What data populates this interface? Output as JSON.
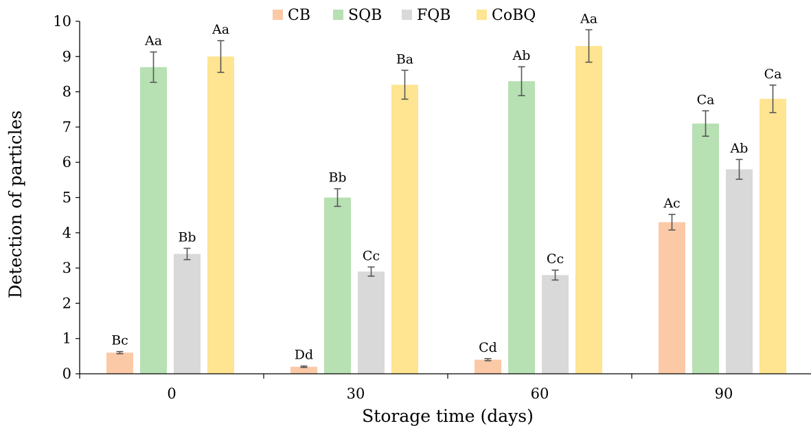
{
  "chart_data": {
    "type": "bar",
    "title": "",
    "xlabel": "Storage time (days)",
    "ylabel": "Detection of particles",
    "categories": [
      "0",
      "30",
      "60",
      "90"
    ],
    "ylim": [
      0,
      10
    ],
    "yticks": [
      "0",
      "1",
      "2",
      "3",
      "4",
      "5",
      "6",
      "7",
      "8",
      "9",
      "10"
    ],
    "grid": false,
    "legend": "top",
    "series": [
      {
        "name": "CB",
        "color": "#fcc9a6",
        "values": [
          0.6,
          0.2,
          0.4,
          4.3
        ],
        "errors": [
          0.03,
          0.02,
          0.03,
          0.22
        ],
        "labels": [
          "Bc",
          "Dd",
          "Cd",
          "Ac"
        ]
      },
      {
        "name": "SQB",
        "color": "#b7e0b3",
        "values": [
          8.7,
          5.0,
          8.3,
          7.1
        ],
        "errors": [
          0.43,
          0.25,
          0.41,
          0.36
        ],
        "labels": [
          "Aa",
          "Bb",
          "Ab",
          "Ca"
        ]
      },
      {
        "name": "FQB",
        "color": "#d9d9d9",
        "values": [
          3.4,
          2.9,
          2.8,
          5.8
        ],
        "errors": [
          0.16,
          0.13,
          0.14,
          0.28
        ],
        "labels": [
          "Bb",
          "Cc",
          "Cc",
          "Ab"
        ]
      },
      {
        "name": "CoBQ",
        "color": "#ffe491",
        "values": [
          9.0,
          8.2,
          9.3,
          7.8
        ],
        "errors": [
          0.45,
          0.41,
          0.46,
          0.39
        ],
        "labels": [
          "Aa",
          "Ba",
          "Aa",
          "Ca"
        ]
      }
    ]
  }
}
